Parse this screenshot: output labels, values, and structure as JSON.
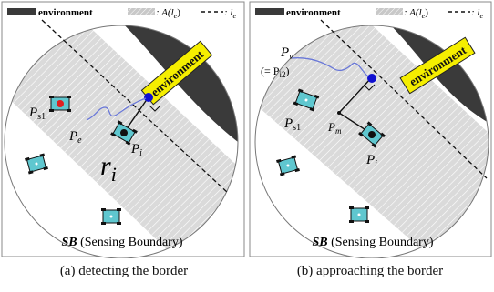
{
  "panels": [
    {
      "legend": {
        "environment": "environment",
        "area": ": A(l",
        "area_sub": "e",
        "area_close": ")",
        "line": ": l",
        "line_sub": "e"
      },
      "region_label": "environment",
      "labels": {
        "p_s1": "P",
        "p_s1_sub": "s1",
        "p_e": "P",
        "p_e_sub": "e",
        "p_i": "P",
        "p_i_sub": "i",
        "r_i": "r",
        "r_i_sub": "i"
      },
      "boundary": {
        "abbr": "SB",
        "text": " (Sensing Boundary)"
      },
      "caption": "(a) detecting the border"
    },
    {
      "legend": {
        "environment": "environment",
        "area": ": A(l",
        "area_sub": "e",
        "area_close": ")",
        "line": ": l",
        "line_sub": "e"
      },
      "region_label": "environment",
      "labels": {
        "p_v": "P",
        "p_v_sub": "v",
        "p_eq": "(= P",
        "p_eq_sub": "i2",
        "p_eq_close": ")",
        "p_s1": "P",
        "p_s1_sub": "s1",
        "p_m": "P",
        "p_m_sub": "m",
        "p_i": "P",
        "p_i_sub": "i"
      },
      "boundary": {
        "abbr": "SB",
        "text": " (Sensing Boundary)"
      },
      "caption": "(b) approaching the border"
    }
  ],
  "colors": {
    "environment_fill": "#3a3a3a",
    "hatch_band": "#cfcfcf",
    "region_label_bg": "#f5ee00",
    "robot_body": "#5fc7cf",
    "robot_red": "#e02020",
    "node_blue": "#1010d0"
  }
}
